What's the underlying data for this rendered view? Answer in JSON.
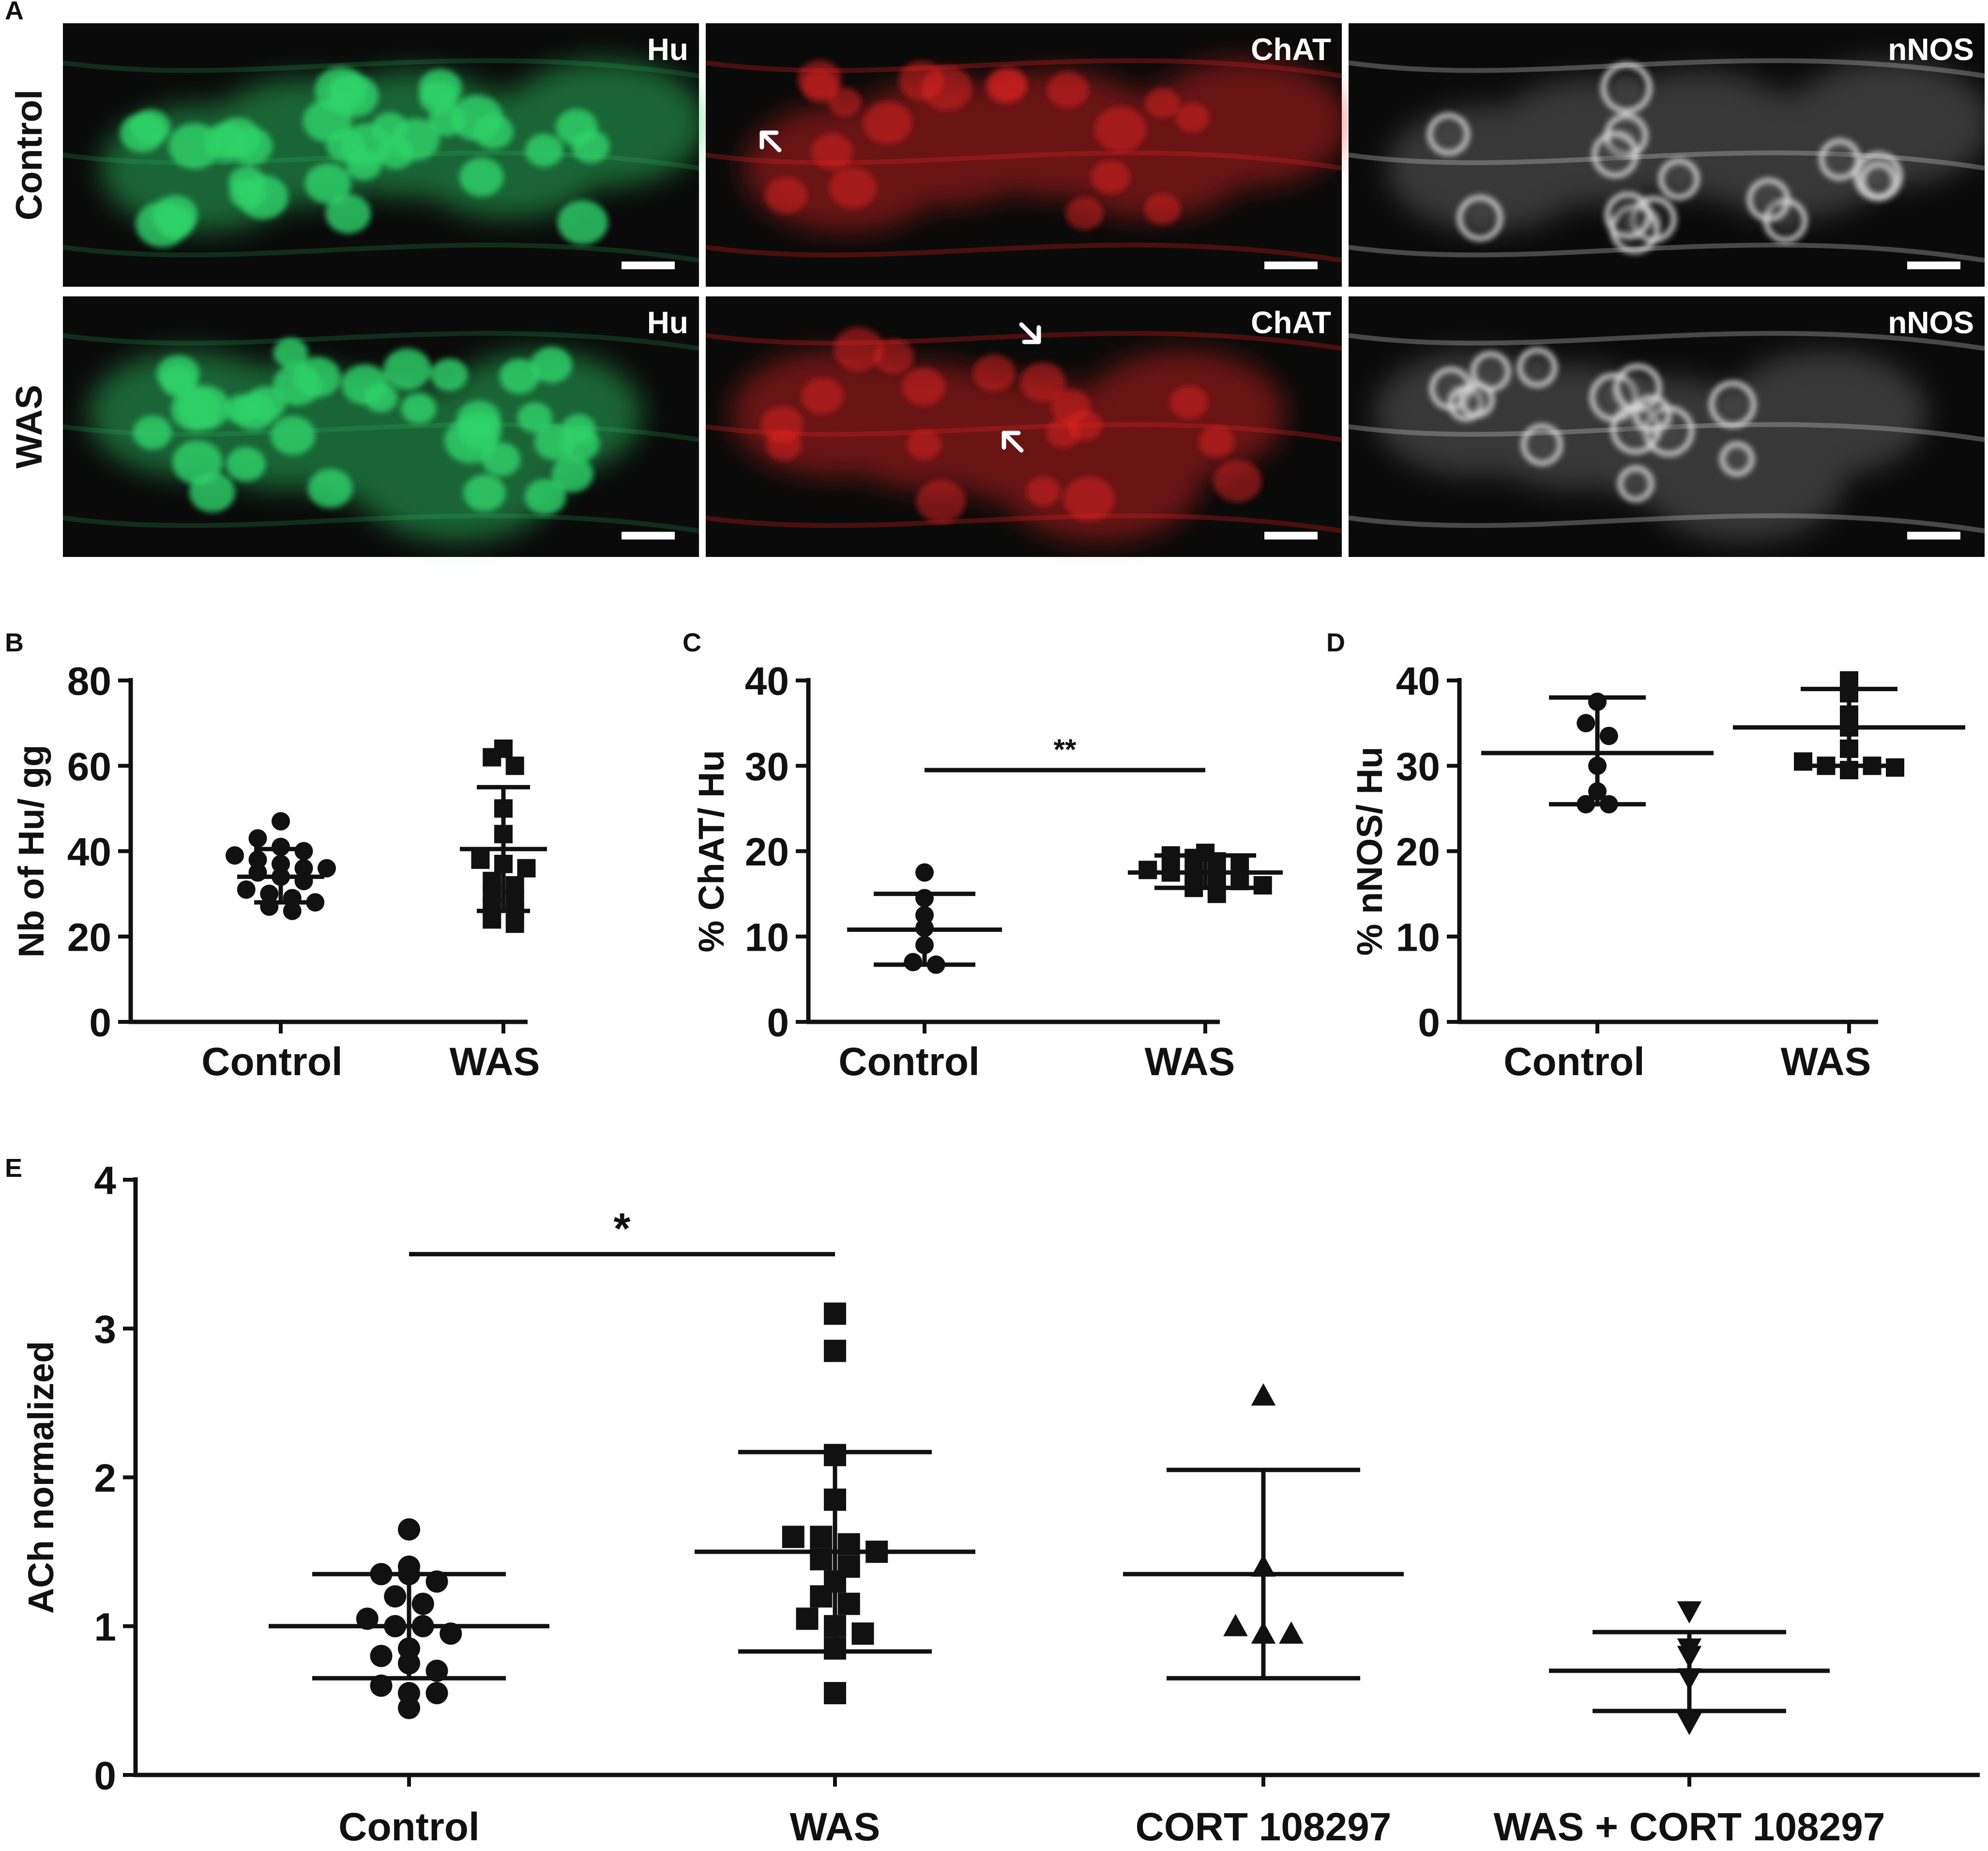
{
  "figure": {
    "panel_letters": [
      "A",
      "B",
      "C",
      "D",
      "E"
    ]
  },
  "panel_a": {
    "row_labels": [
      "Control",
      "WAS"
    ],
    "stains": [
      {
        "label": "Hu",
        "color": "#2ecc71"
      },
      {
        "label": "ChAT",
        "color": "#d81e1e"
      },
      {
        "label": "nNOS",
        "color": "#cfcfcf"
      }
    ]
  },
  "colors": {
    "ink": "#111111",
    "hu_green": "#2fd36a",
    "chat_red": "#e02020",
    "nnos_gray": "#d9d9d9",
    "micrograph_bg": "#0a0a0a"
  },
  "chart_data": [
    {
      "panel": "B",
      "type": "scatter",
      "categories": [
        "Control",
        "WAS"
      ],
      "ylabel": "Nb of Hu/ gg",
      "ylim": [
        0,
        80
      ],
      "yticks": [
        "0",
        "20",
        "40",
        "60",
        "80"
      ],
      "grid": false,
      "series": [
        {
          "marker": "circle",
          "category": "Control",
          "mean": 34,
          "err_low": 28,
          "err_high": 40.5,
          "points": [
            47,
            43,
            41,
            40,
            39,
            38,
            37,
            36,
            36,
            35,
            34,
            33,
            31,
            30,
            29,
            28,
            27,
            26
          ]
        },
        {
          "marker": "square",
          "category": "WAS",
          "mean": 40.5,
          "err_low": 26,
          "err_high": 55,
          "points": [
            64,
            62,
            60,
            50,
            44,
            38,
            37,
            36,
            33,
            32,
            30,
            29,
            27,
            26,
            24,
            23
          ]
        }
      ],
      "significance": []
    },
    {
      "panel": "C",
      "type": "scatter",
      "categories": [
        "Control",
        "WAS"
      ],
      "ylabel": "% ChAT/ Hu",
      "ylim": [
        0,
        40
      ],
      "yticks": [
        "0",
        "10",
        "20",
        "30",
        "40"
      ],
      "grid": false,
      "series": [
        {
          "marker": "circle",
          "category": "Control",
          "mean": 10.8,
          "err_low": 6.7,
          "err_high": 15,
          "points": [
            17.5,
            14.5,
            12.5,
            11,
            9,
            7,
            6.7
          ]
        },
        {
          "marker": "square",
          "category": "WAS",
          "mean": 17.5,
          "err_low": 15.7,
          "err_high": 19.5,
          "points": [
            19.8,
            19.5,
            19.2,
            18.8,
            18.5,
            17.8,
            17.5,
            17.2,
            16.8,
            16.5,
            16,
            15.7,
            15
          ]
        }
      ],
      "significance": [
        {
          "from": "Control",
          "to": "WAS",
          "y": 29.5,
          "label": "**"
        }
      ]
    },
    {
      "panel": "D",
      "type": "scatter",
      "categories": [
        "Control",
        "WAS"
      ],
      "ylabel": "% nNOS/ Hu",
      "ylim": [
        0,
        40
      ],
      "yticks": [
        "0",
        "10",
        "20",
        "30",
        "40"
      ],
      "grid": false,
      "series": [
        {
          "marker": "circle",
          "category": "Control",
          "mean": 31.5,
          "err_low": 25.5,
          "err_high": 38,
          "points": [
            37.5,
            35,
            33.5,
            30,
            27,
            25.5,
            25.5
          ]
        },
        {
          "marker": "square",
          "category": "WAS",
          "mean": 34.5,
          "err_low": 30,
          "err_high": 39,
          "points": [
            40,
            38.5,
            36,
            34.5,
            32,
            30.5,
            30,
            29.5,
            30,
            29.8
          ]
        }
      ],
      "significance": []
    },
    {
      "panel": "E",
      "type": "scatter",
      "categories": [
        "Control",
        "WAS",
        "CORT 108297",
        "WAS + CORT 108297"
      ],
      "ylabel": "ACh normalized",
      "ylim": [
        0,
        4
      ],
      "yticks": [
        "0",
        "1",
        "2",
        "3",
        "4"
      ],
      "grid": false,
      "series": [
        {
          "marker": "circle",
          "category": "Control",
          "mean": 1.0,
          "err_low": 0.65,
          "err_high": 1.35,
          "points": [
            1.65,
            1.4,
            1.35,
            1.35,
            1.3,
            1.2,
            1.15,
            1.05,
            1.0,
            1.0,
            0.95,
            0.85,
            0.8,
            0.75,
            0.7,
            0.6,
            0.55,
            0.55,
            0.45
          ]
        },
        {
          "marker": "square",
          "category": "WAS",
          "mean": 1.5,
          "err_low": 0.83,
          "err_high": 2.17,
          "points": [
            3.1,
            2.85,
            2.15,
            1.85,
            1.6,
            1.6,
            1.55,
            1.5,
            1.45,
            1.4,
            1.3,
            1.2,
            1.15,
            1.05,
            1.0,
            0.95,
            0.85,
            0.55
          ]
        },
        {
          "marker": "triangle-up",
          "category": "CORT 108297",
          "mean": 1.35,
          "err_low": 0.65,
          "err_high": 2.05,
          "points": [
            2.55,
            1.4,
            1.0,
            0.95,
            0.95
          ]
        },
        {
          "marker": "triangle-down",
          "category": "WAS + CORT 108297",
          "mean": 0.7,
          "err_low": 0.43,
          "err_high": 0.96,
          "points": [
            1.1,
            0.85,
            0.8,
            0.65,
            0.35
          ]
        }
      ],
      "significance": [
        {
          "from": "Control",
          "to": "WAS",
          "y": 3.5,
          "label": "*"
        }
      ]
    }
  ]
}
